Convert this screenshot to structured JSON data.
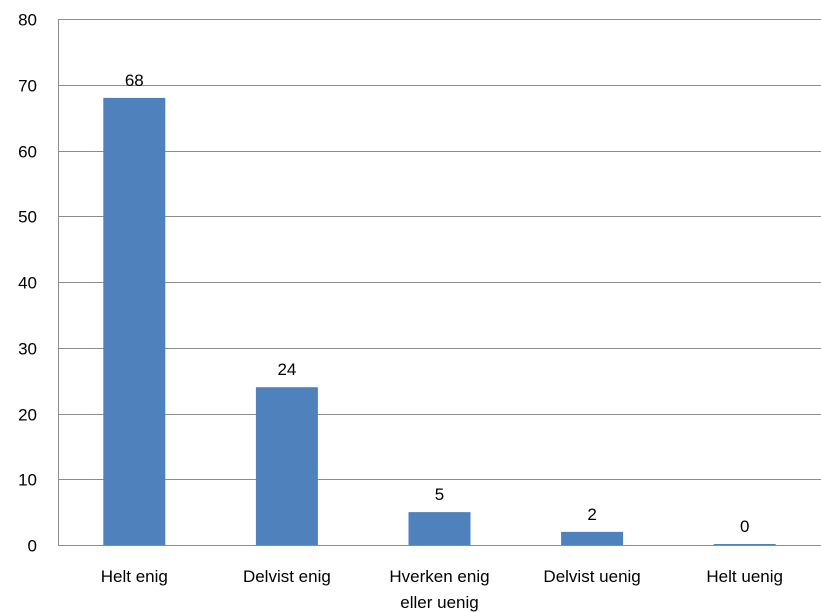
{
  "chart_data": {
    "type": "bar",
    "categories": [
      "Helt enig",
      "Delvist enig",
      "Hverken enig eller uenig",
      "Delvist uenig",
      "Helt uenig"
    ],
    "category_lines": [
      [
        "Helt enig"
      ],
      [
        "Delvist enig"
      ],
      [
        "Hverken enig",
        "eller uenig"
      ],
      [
        "Delvist uenig"
      ],
      [
        "Helt uenig"
      ]
    ],
    "values": [
      68,
      24,
      5,
      2,
      0
    ],
    "data_labels": [
      "68",
      "24",
      "5",
      "2",
      "0"
    ],
    "ylim": [
      0,
      80
    ],
    "yticks": [
      0,
      10,
      20,
      30,
      40,
      50,
      60,
      70,
      80
    ],
    "grid": true,
    "legend": "none",
    "bar_color": "#4f81bd",
    "grid_color": "#8c8c8c"
  }
}
